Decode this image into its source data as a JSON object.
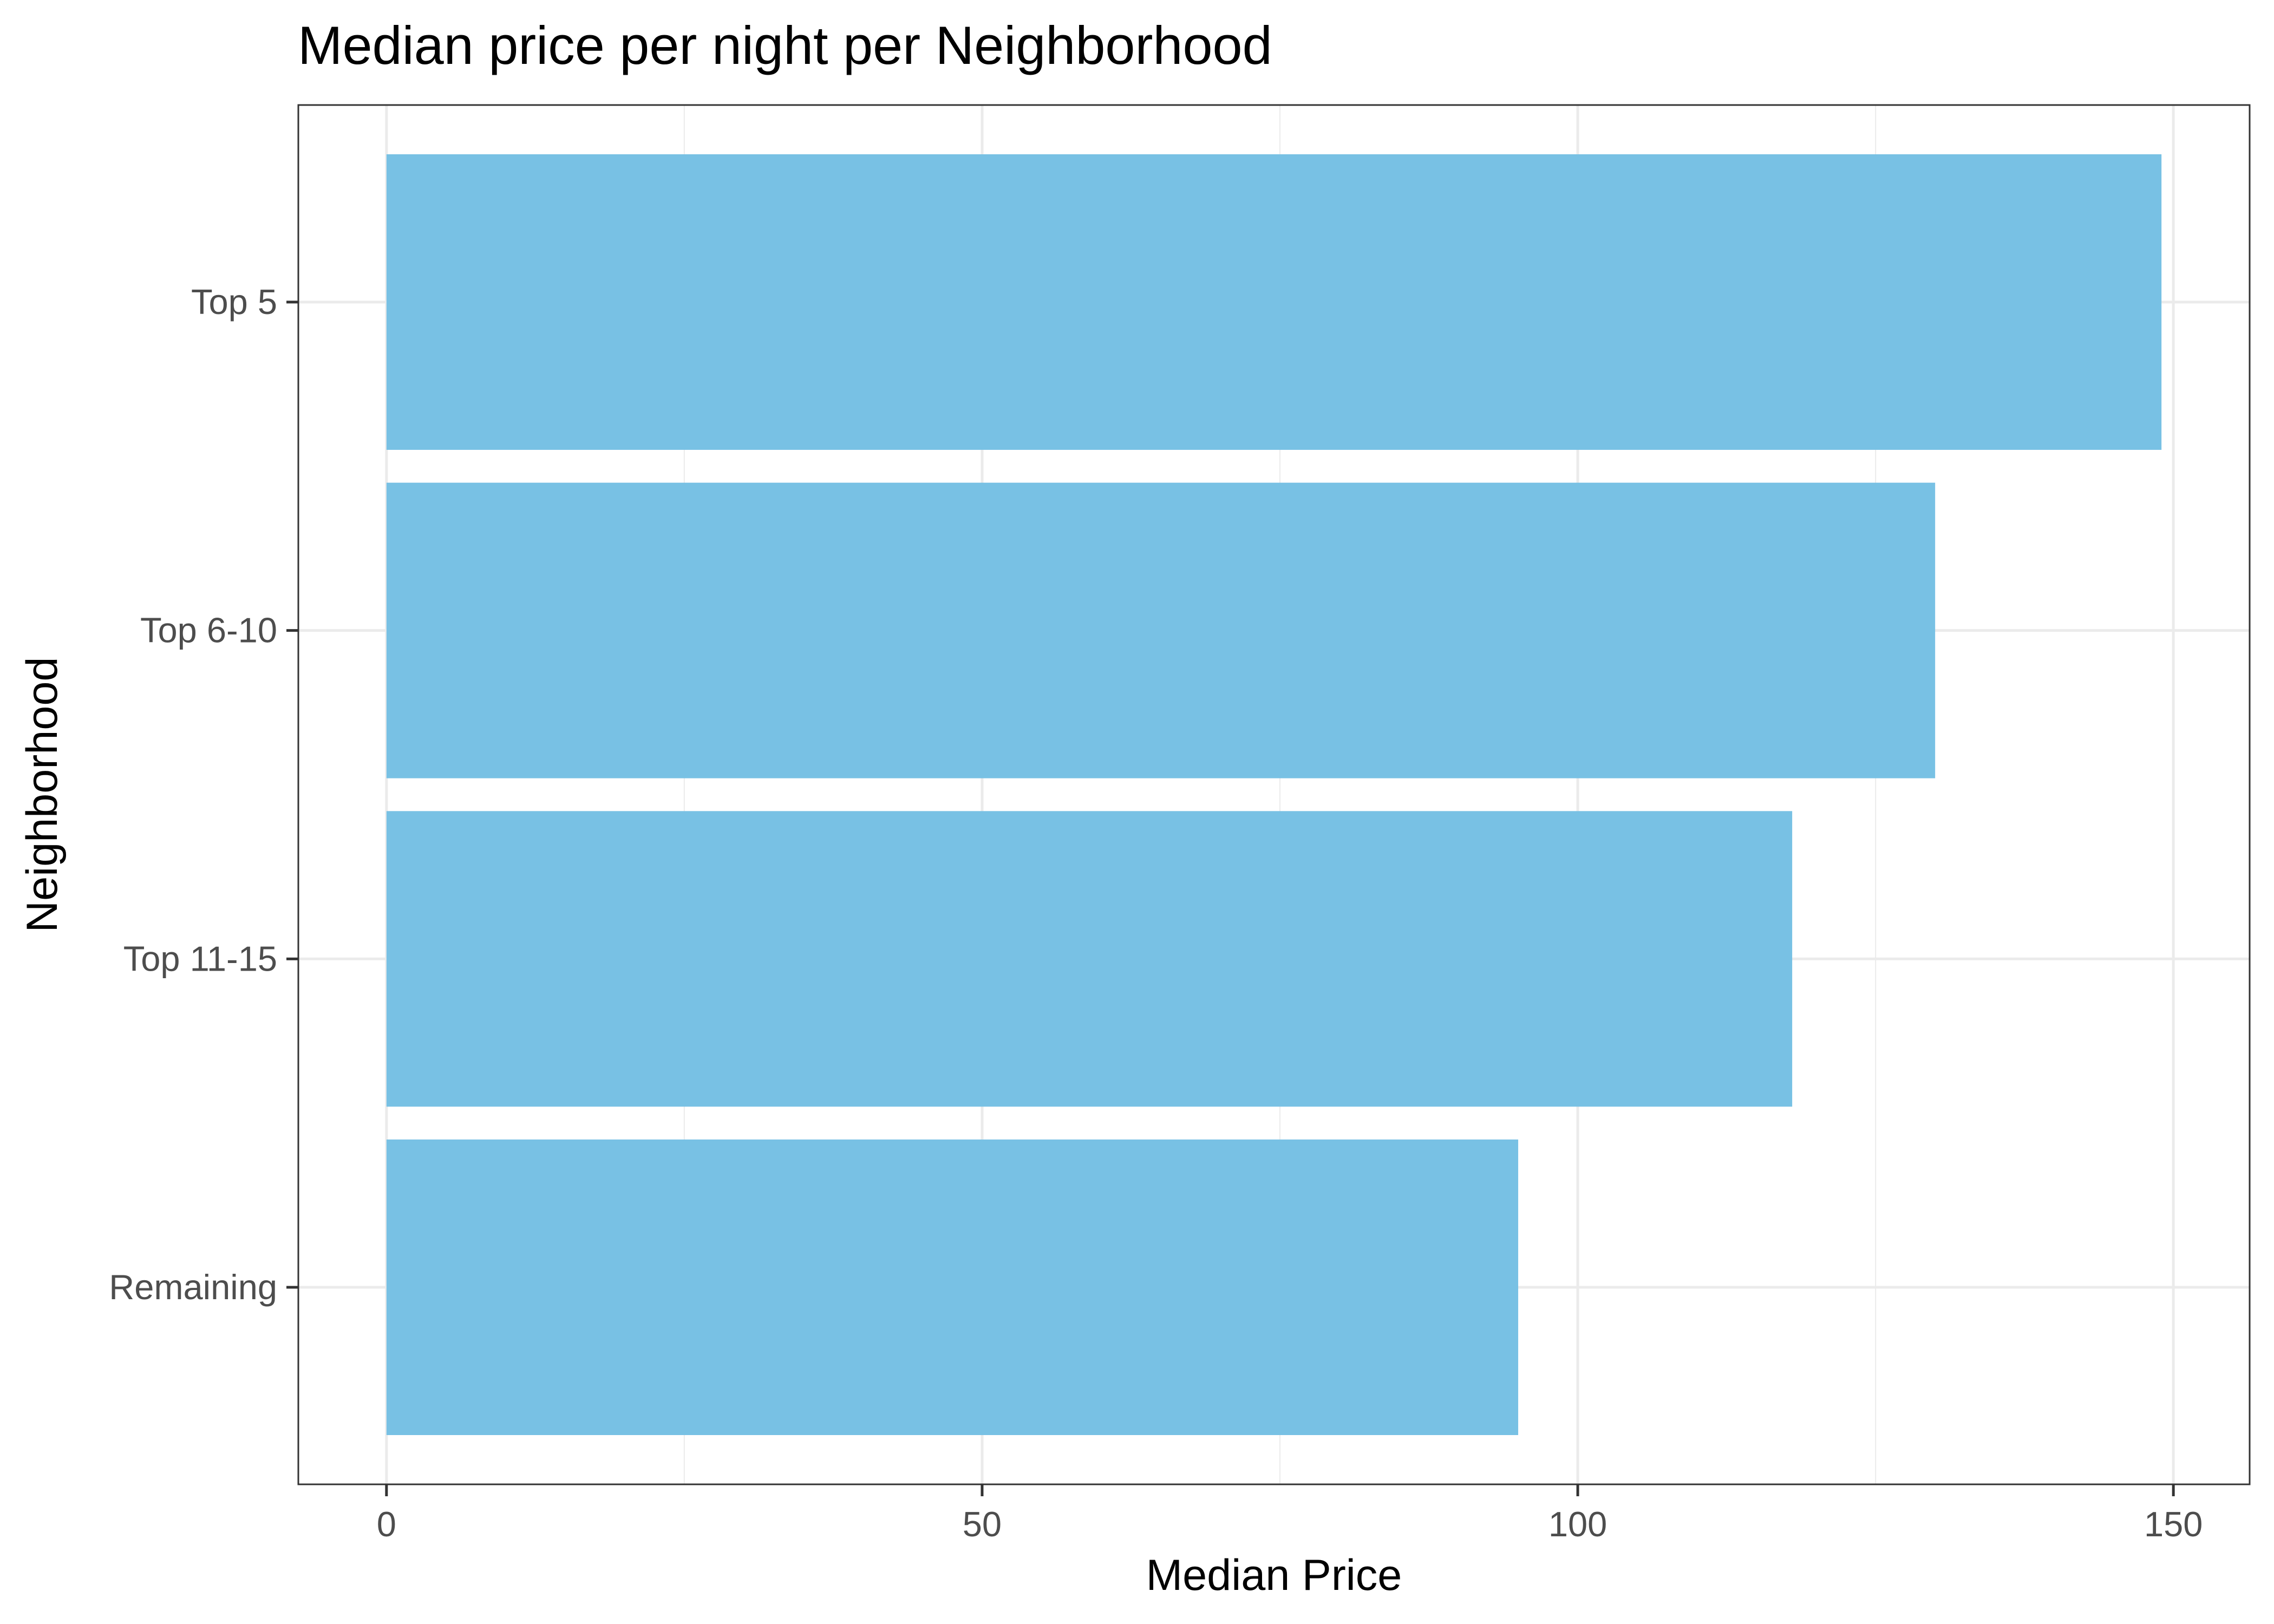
{
  "chart_data": {
    "type": "bar",
    "orientation": "horizontal",
    "title": "Median price per night per Neighborhood",
    "xlabel": "Median Price",
    "ylabel": "Neighborhood",
    "categories": [
      "Top 5",
      "Top 6-10",
      "Top 11-15",
      "Remaining"
    ],
    "values": [
      149,
      130,
      118,
      95
    ],
    "xlim": [
      -7.4,
      156.4
    ],
    "xticks": [
      0,
      50,
      100,
      150
    ],
    "xtick_labels": [
      "0",
      "50",
      "100",
      "150"
    ],
    "grid": true,
    "legend": "none",
    "bar_color": "#78c1e4",
    "panel_border_color": "#333333",
    "grid_color": "#ebebeb"
  }
}
